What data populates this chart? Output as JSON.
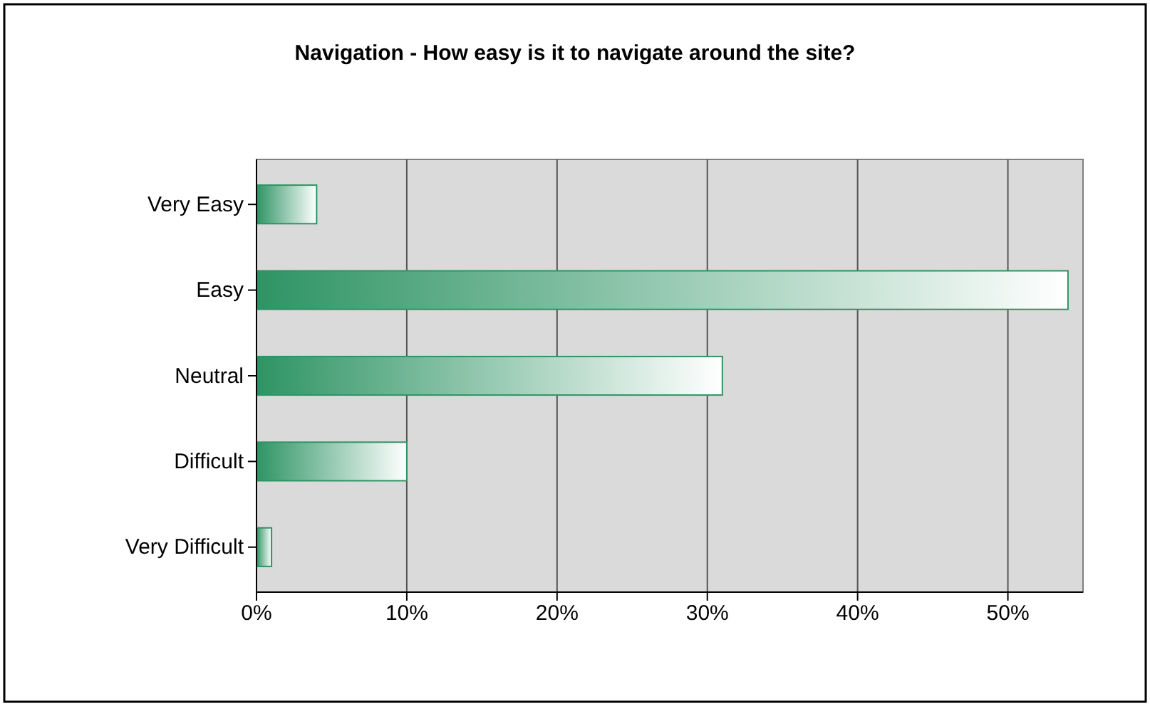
{
  "chart_data": {
    "type": "bar",
    "orientation": "horizontal",
    "title": "Navigation - How easy is it to navigate around the site?",
    "categories": [
      "Very Easy",
      "Easy",
      "Neutral",
      "Difficult",
      "Very Difficult"
    ],
    "values": [
      4,
      54,
      31,
      10,
      1
    ],
    "color": "#2e9464",
    "xlim": [
      0,
      55
    ],
    "xticks": [
      {
        "value": 0,
        "label": "0%"
      },
      {
        "value": 10,
        "label": "10%"
      },
      {
        "value": 20,
        "label": "20%"
      },
      {
        "value": 30,
        "label": "30%"
      },
      {
        "value": 40,
        "label": "40%"
      },
      {
        "value": 50,
        "label": "50%"
      }
    ],
    "grid": "x"
  }
}
